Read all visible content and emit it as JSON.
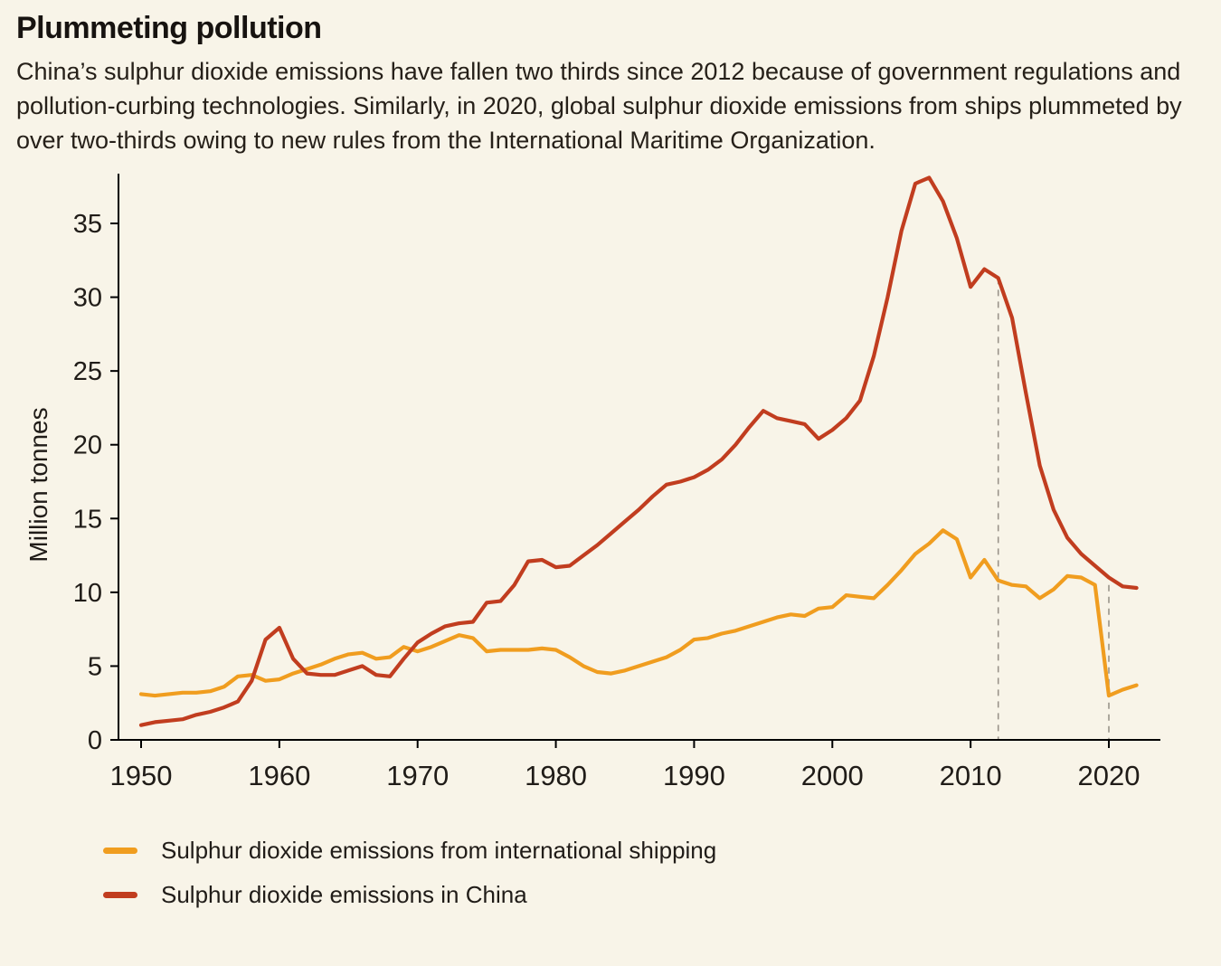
{
  "page": {
    "background": "#f8f4e8",
    "title": "Plummeting pollution",
    "subtitle": "China’s sulphur dioxide emissions have fallen two thirds since 2012 because of government regulations and pollution-curbing technologies. Similarly, in 2020, global sulphur dioxide emissions from ships plummeted by over two-thirds owing to new rules from the International Maritime Organization."
  },
  "chart_data": {
    "type": "line",
    "title": "Plummeting pollution",
    "ylabel": "Million tonnes",
    "xlabel": "",
    "ylim": [
      0,
      38.5
    ],
    "yticks": [
      0,
      5,
      10,
      15,
      20,
      25,
      30,
      35
    ],
    "xticks": [
      1950,
      1960,
      1970,
      1980,
      1990,
      2000,
      2010,
      2020
    ],
    "x_range": [
      1950,
      2022
    ],
    "grid": false,
    "legend_position": "bottom-left",
    "axis_color": "#000000",
    "dashed_line_color": "#9a948a",
    "x": [
      1950,
      1951,
      1952,
      1953,
      1954,
      1955,
      1956,
      1957,
      1958,
      1959,
      1960,
      1961,
      1962,
      1963,
      1964,
      1965,
      1966,
      1967,
      1968,
      1969,
      1970,
      1971,
      1972,
      1973,
      1974,
      1975,
      1976,
      1977,
      1978,
      1979,
      1980,
      1981,
      1982,
      1983,
      1984,
      1985,
      1986,
      1987,
      1988,
      1989,
      1990,
      1991,
      1992,
      1993,
      1994,
      1995,
      1996,
      1997,
      1998,
      1999,
      2000,
      2001,
      2002,
      2003,
      2004,
      2005,
      2006,
      2007,
      2008,
      2009,
      2010,
      2011,
      2012,
      2013,
      2014,
      2015,
      2016,
      2017,
      2018,
      2019,
      2020,
      2021,
      2022
    ],
    "series": [
      {
        "name": "Sulphur dioxide emissions from international shipping",
        "color": "#f09d1f",
        "values": [
          3.1,
          3.0,
          3.1,
          3.2,
          3.2,
          3.3,
          3.6,
          4.3,
          4.4,
          4.0,
          4.1,
          4.5,
          4.8,
          5.1,
          5.5,
          5.8,
          5.9,
          5.5,
          5.6,
          6.3,
          6.0,
          6.3,
          6.7,
          7.1,
          6.9,
          6.0,
          6.1,
          6.1,
          6.1,
          6.2,
          6.1,
          5.6,
          5.0,
          4.6,
          4.5,
          4.7,
          5.0,
          5.3,
          5.6,
          6.1,
          6.8,
          6.9,
          7.2,
          7.4,
          7.7,
          8.0,
          8.3,
          8.5,
          8.4,
          8.9,
          9.0,
          9.8,
          9.7,
          9.6,
          10.5,
          11.5,
          12.6,
          13.3,
          14.2,
          13.6,
          11.0,
          12.2,
          10.8,
          10.5,
          10.4,
          9.6,
          10.2,
          11.1,
          11.0,
          10.5,
          3.0,
          3.4,
          3.7
        ]
      },
      {
        "name": "Sulphur dioxide emissions in China",
        "color": "#c13d1f",
        "values": [
          1.0,
          1.2,
          1.3,
          1.4,
          1.7,
          1.9,
          2.2,
          2.6,
          4.0,
          6.8,
          7.6,
          5.5,
          4.5,
          4.4,
          4.4,
          4.7,
          5.0,
          4.4,
          4.3,
          5.5,
          6.6,
          7.2,
          7.7,
          7.9,
          8.0,
          9.3,
          9.4,
          10.5,
          12.1,
          12.2,
          11.7,
          11.8,
          12.5,
          13.2,
          14.0,
          14.8,
          15.6,
          16.5,
          17.3,
          17.5,
          17.8,
          18.3,
          19.0,
          20.0,
          21.2,
          22.3,
          21.8,
          21.6,
          21.4,
          20.4,
          21.0,
          21.8,
          23.0,
          26.0,
          30.0,
          34.5,
          37.7,
          38.1,
          36.5,
          34.0,
          30.7,
          31.9,
          31.3,
          28.6,
          23.5,
          18.6,
          15.6,
          13.7,
          12.6,
          11.8,
          11.0,
          10.4,
          10.3
        ]
      }
    ],
    "annotations": [
      {
        "type": "dashed-vline",
        "year": 2012,
        "from_value": 31.3
      },
      {
        "type": "dashed-vline",
        "year": 2020,
        "from_value": 10.5
      }
    ]
  },
  "legend": {
    "items": [
      {
        "label": "Sulphur dioxide emissions from international shipping",
        "color": "#f09d1f"
      },
      {
        "label": "Sulphur dioxide emissions in China",
        "color": "#c13d1f"
      }
    ]
  }
}
